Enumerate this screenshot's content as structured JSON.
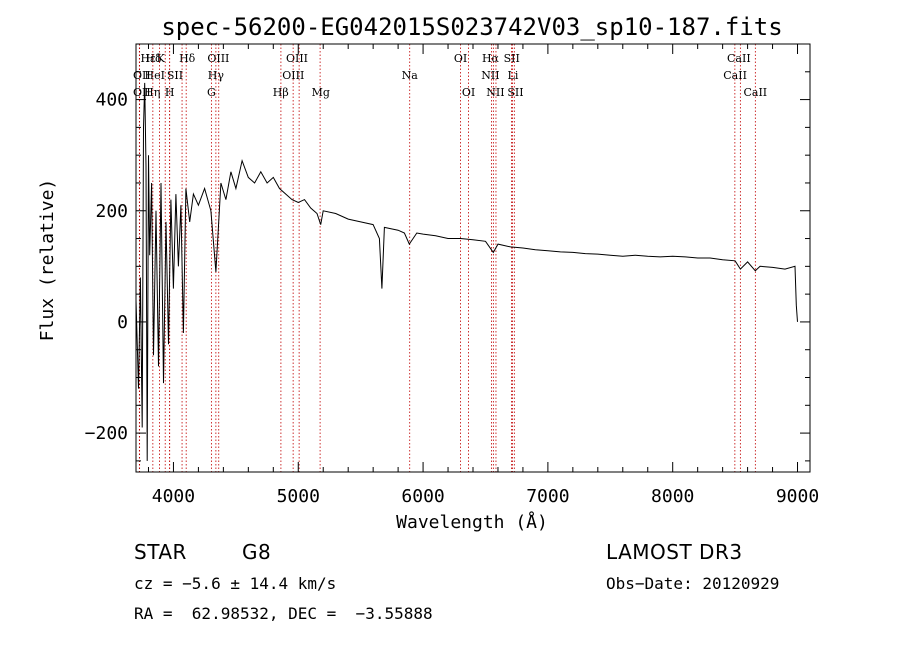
{
  "chart_data": {
    "type": "line",
    "title": "spec-56200-EG042015S023742V03_sp10-187.fits",
    "xlabel": "Wavelength (Å)",
    "ylabel": "Flux (relative)",
    "xlim": [
      3700,
      9100
    ],
    "ylim": [
      -270,
      500
    ],
    "x_ticks": [
      4000,
      5000,
      6000,
      7000,
      8000,
      9000
    ],
    "y_ticks": [
      -200,
      0,
      200,
      400
    ],
    "x_tick_labels": [
      "4000",
      "5000",
      "6000",
      "7000",
      "8000",
      "9000"
    ],
    "y_tick_labels": [
      "−200",
      "0",
      "200",
      "400"
    ],
    "line_color": "#000000",
    "marker_color": "#c00000",
    "series": [
      {
        "name": "flux",
        "points": [
          [
            3700,
            40
          ],
          [
            3720,
            -120
          ],
          [
            3735,
            80
          ],
          [
            3750,
            -190
          ],
          [
            3760,
            350
          ],
          [
            3770,
            430
          ],
          [
            3780,
            280
          ],
          [
            3790,
            -250
          ],
          [
            3800,
            300
          ],
          [
            3810,
            120
          ],
          [
            3825,
            250
          ],
          [
            3840,
            -60
          ],
          [
            3860,
            200
          ],
          [
            3880,
            -80
          ],
          [
            3900,
            250
          ],
          [
            3920,
            -110
          ],
          [
            3940,
            180
          ],
          [
            3960,
            -40
          ],
          [
            3980,
            220
          ],
          [
            4000,
            60
          ],
          [
            4020,
            230
          ],
          [
            4040,
            100
          ],
          [
            4060,
            210
          ],
          [
            4080,
            -20
          ],
          [
            4100,
            240
          ],
          [
            4130,
            180
          ],
          [
            4160,
            230
          ],
          [
            4200,
            210
          ],
          [
            4250,
            240
          ],
          [
            4300,
            200
          ],
          [
            4340,
            90
          ],
          [
            4380,
            250
          ],
          [
            4420,
            220
          ],
          [
            4460,
            270
          ],
          [
            4500,
            240
          ],
          [
            4550,
            290
          ],
          [
            4600,
            260
          ],
          [
            4650,
            250
          ],
          [
            4700,
            270
          ],
          [
            4750,
            250
          ],
          [
            4800,
            260
          ],
          [
            4850,
            240
          ],
          [
            4900,
            230
          ],
          [
            4950,
            220
          ],
          [
            5000,
            215
          ],
          [
            5050,
            220
          ],
          [
            5100,
            205
          ],
          [
            5150,
            195
          ],
          [
            5180,
            175
          ],
          [
            5200,
            200
          ],
          [
            5300,
            195
          ],
          [
            5400,
            185
          ],
          [
            5500,
            180
          ],
          [
            5600,
            175
          ],
          [
            5650,
            150
          ],
          [
            5670,
            60
          ],
          [
            5690,
            170
          ],
          [
            5800,
            165
          ],
          [
            5850,
            160
          ],
          [
            5890,
            140
          ],
          [
            5950,
            160
          ],
          [
            6000,
            158
          ],
          [
            6100,
            155
          ],
          [
            6200,
            150
          ],
          [
            6300,
            150
          ],
          [
            6400,
            148
          ],
          [
            6500,
            145
          ],
          [
            6563,
            125
          ],
          [
            6600,
            140
          ],
          [
            6700,
            135
          ],
          [
            6800,
            133
          ],
          [
            6900,
            130
          ],
          [
            7000,
            128
          ],
          [
            7100,
            126
          ],
          [
            7200,
            125
          ],
          [
            7300,
            123
          ],
          [
            7400,
            122
          ],
          [
            7500,
            120
          ],
          [
            7600,
            118
          ],
          [
            7700,
            120
          ],
          [
            7800,
            118
          ],
          [
            7900,
            117
          ],
          [
            8000,
            118
          ],
          [
            8100,
            117
          ],
          [
            8200,
            115
          ],
          [
            8300,
            115
          ],
          [
            8400,
            112
          ],
          [
            8500,
            110
          ],
          [
            8542,
            95
          ],
          [
            8600,
            108
          ],
          [
            8662,
            92
          ],
          [
            8700,
            100
          ],
          [
            8800,
            98
          ],
          [
            8900,
            95
          ],
          [
            8980,
            100
          ],
          [
            8990,
            30
          ],
          [
            9000,
            0
          ]
        ]
      }
    ],
    "line_markers": [
      {
        "name": "Hε",
        "wavelength": 3970,
        "row": 0,
        "label_x": 3797
      },
      {
        "name": "Hδ",
        "wavelength": 4102,
        "row": 0,
        "label_x": 3840
      },
      {
        "name": "K",
        "wavelength": 3934,
        "row": 0,
        "label_x": 3898
      },
      {
        "name": "Hδ",
        "wavelength": 4102,
        "row": 0,
        "label_x": 4110
      },
      {
        "name": "OII",
        "wavelength": 3727,
        "row": 1,
        "label_x": 3747
      },
      {
        "name": "HeI",
        "wavelength": 3889,
        "row": 1,
        "label_x": 3850
      },
      {
        "name": "SII",
        "wavelength": 4069,
        "row": 1,
        "label_x": 4012
      },
      {
        "name": "OII",
        "wavelength": 3729,
        "row": 2,
        "label_x": 3747
      },
      {
        "name": "Hη",
        "wavelength": 3835,
        "row": 2,
        "label_x": 3830
      },
      {
        "name": "H",
        "wavelength": 3969,
        "row": 2,
        "label_x": 3970
      },
      {
        "name": "OIII",
        "wavelength": 4363,
        "row": 0,
        "label_x": 4360
      },
      {
        "name": "Hγ",
        "wavelength": 4340,
        "row": 1,
        "label_x": 4340
      },
      {
        "name": "G",
        "wavelength": 4304,
        "row": 2,
        "label_x": 4304
      },
      {
        "name": "OIII",
        "wavelength": 5007,
        "row": 0,
        "label_x": 4990
      },
      {
        "name": "OIII",
        "wavelength": 4959,
        "row": 1,
        "label_x": 4960
      },
      {
        "name": "Hβ",
        "wavelength": 4861,
        "row": 2,
        "label_x": 4860
      },
      {
        "name": "Mg",
        "wavelength": 5175,
        "row": 2,
        "label_x": 5180
      },
      {
        "name": "Na",
        "wavelength": 5893,
        "row": 1,
        "label_x": 5893
      },
      {
        "name": "OI",
        "wavelength": 6300,
        "row": 0,
        "label_x": 6300
      },
      {
        "name": "OI",
        "wavelength": 6364,
        "row": 2,
        "label_x": 6364
      },
      {
        "name": "Hα",
        "wavelength": 6563,
        "row": 0,
        "label_x": 6540
      },
      {
        "name": "SII",
        "wavelength": 6717,
        "row": 0,
        "label_x": 6710
      },
      {
        "name": "NII",
        "wavelength": 6548,
        "row": 1,
        "label_x": 6540
      },
      {
        "name": "Li",
        "wavelength": 6708,
        "row": 1,
        "label_x": 6720
      },
      {
        "name": "NII",
        "wavelength": 6584,
        "row": 2,
        "label_x": 6580
      },
      {
        "name": "SII",
        "wavelength": 6731,
        "row": 2,
        "label_x": 6740
      },
      {
        "name": "CaII",
        "wavelength": 8542,
        "row": 0,
        "label_x": 8530
      },
      {
        "name": "CaII",
        "wavelength": 8498,
        "row": 1,
        "label_x": 8500
      },
      {
        "name": "CaII",
        "wavelength": 8662,
        "row": 2,
        "label_x": 8662
      }
    ]
  },
  "info": {
    "object_type": "STAR",
    "subclass": "G8",
    "survey": "LAMOST DR3",
    "cz_line": "cz = −5.6 ± 14.4 km/s",
    "obs_date_line": "Obs−Date: 20120929",
    "coords_line": "RA =  62.98532, DEC =  −3.55888"
  }
}
